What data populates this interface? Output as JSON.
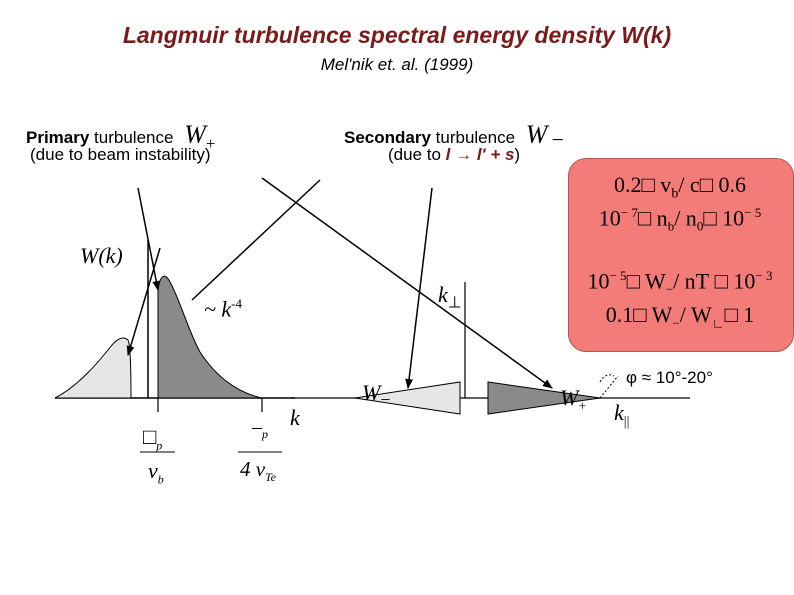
{
  "title": "Langmuir turbulence spectral energy density W(k)",
  "subtitle": "Mel'nik et. al. (1999)",
  "primary": {
    "bold": "Primary",
    "rest": " turbulence",
    "symbol": "W",
    "sub": "+",
    "paren": "(due to beam instability)"
  },
  "secondary": {
    "bold": "Secondary",
    "rest": " turbulence",
    "symbol": "W",
    "sub": "−",
    "paren_open": "(due to ",
    "paren_formula": "l → l' + s",
    "paren_close": ")"
  },
  "box": {
    "line1": "0.2□ v",
    "line1_sub": "b",
    "line1_rest": "/ c□ 0.6",
    "line2_a": "10",
    "line2_a_sup": "− 7",
    "line2_b": "□ n",
    "line2_b_sub": "b",
    "line2_c": "/ n",
    "line2_c_sub": "0",
    "line2_d": "□ 10",
    "line2_d_sup": "− 5",
    "line3_a": "10",
    "line3_a_sup": "− 5",
    "line3_b": "□ W",
    "line3_b_sub": "−",
    "line3_c": "/ nT",
    "line3_d": " □ 10",
    "line3_d_sup": "− 3",
    "line4_a": "0.1□ W",
    "line4_a_sub": "−",
    "line4_b": "/ W",
    "line4_b_sub": "∟",
    "line4_c": "□ 1"
  },
  "plot": {
    "ylabel": "W(k)",
    "xlabel": "k",
    "power_law": "~ k",
    "power_law_exp": "-4",
    "tick1_top": "□",
    "tick1_top_sub": "p",
    "tick1_bottom": "v",
    "tick1_bottom_sub": "b",
    "tick2_top": "–",
    "tick2_top_sub": "p",
    "tick2_bottom": "4 v",
    "tick2_bottom_sub": "Te"
  },
  "kspace": {
    "k_perp": "k",
    "k_perp_sub": "⊥",
    "k_par": "k",
    "k_par_sub": "||",
    "w_minus": "W",
    "w_minus_sub": "−",
    "w_plus": "W",
    "w_plus_sub": "+",
    "angle": "φ ≈ 10°-20°"
  },
  "colors": {
    "title": "#7a1a1a",
    "box_fill": "#f47c78",
    "light_gray": "#e6e6e6",
    "dark_gray": "#8a8a8a"
  }
}
